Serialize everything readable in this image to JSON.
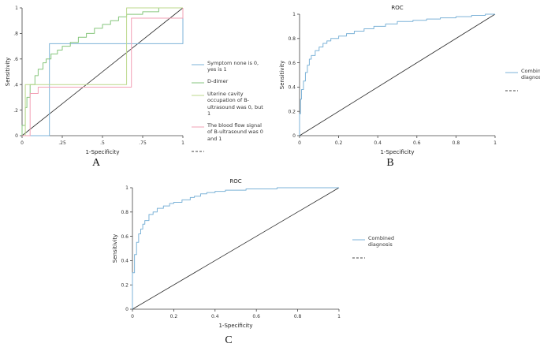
{
  "figure": {
    "background": "#ffffff",
    "panels": [
      {
        "letter": "A"
      },
      {
        "letter": "B"
      },
      {
        "letter": "C"
      }
    ]
  },
  "chart_data": [
    {
      "id": "A",
      "type": "line",
      "title": "",
      "xlabel": "1-Specificity",
      "ylabel": "Sensitivity",
      "xlim": [
        0,
        1
      ],
      "ylim": [
        0,
        1
      ],
      "grid": false,
      "legend_position": "right",
      "xticks": {
        "values": [
          0,
          0.25,
          0.5,
          0.75,
          1
        ],
        "labels": [
          "0",
          ".25",
          ".5",
          ".75",
          "1"
        ]
      },
      "yticks": {
        "values": [
          0,
          0.2,
          0.4,
          0.6,
          0.8,
          1
        ],
        "labels": [
          "0",
          ".2",
          ".4",
          ".6",
          ".8",
          "1"
        ]
      },
      "reference": {
        "points": [
          [
            0,
            0
          ],
          [
            1,
            1
          ]
        ],
        "color": "#2b2b2b",
        "dash": ""
      },
      "series": [
        {
          "name": "Symptom none is 0, yes is 1",
          "color": "#7db3d8",
          "dash": "",
          "points": [
            [
              0,
              0
            ],
            [
              0.17,
              0
            ],
            [
              0.17,
              0.72
            ],
            [
              1,
              0.72
            ],
            [
              1,
              1
            ]
          ]
        },
        {
          "name": "D-dimer",
          "color": "#86c67c",
          "dash": "",
          "points": [
            [
              0,
              0
            ],
            [
              0,
              0.08
            ],
            [
              0.02,
              0.08
            ],
            [
              0.02,
              0.22
            ],
            [
              0.03,
              0.22
            ],
            [
              0.03,
              0.3
            ],
            [
              0.05,
              0.3
            ],
            [
              0.05,
              0.4
            ],
            [
              0.08,
              0.4
            ],
            [
              0.08,
              0.47
            ],
            [
              0.1,
              0.47
            ],
            [
              0.1,
              0.52
            ],
            [
              0.13,
              0.52
            ],
            [
              0.13,
              0.57
            ],
            [
              0.15,
              0.57
            ],
            [
              0.15,
              0.6
            ],
            [
              0.18,
              0.6
            ],
            [
              0.18,
              0.64
            ],
            [
              0.22,
              0.64
            ],
            [
              0.22,
              0.67
            ],
            [
              0.25,
              0.67
            ],
            [
              0.25,
              0.7
            ],
            [
              0.3,
              0.7
            ],
            [
              0.3,
              0.73
            ],
            [
              0.35,
              0.73
            ],
            [
              0.35,
              0.77
            ],
            [
              0.4,
              0.77
            ],
            [
              0.4,
              0.8
            ],
            [
              0.45,
              0.8
            ],
            [
              0.45,
              0.84
            ],
            [
              0.5,
              0.84
            ],
            [
              0.5,
              0.87
            ],
            [
              0.55,
              0.87
            ],
            [
              0.55,
              0.9
            ],
            [
              0.6,
              0.9
            ],
            [
              0.6,
              0.93
            ],
            [
              0.65,
              0.93
            ],
            [
              0.65,
              0.95
            ],
            [
              0.75,
              0.95
            ],
            [
              0.75,
              0.97
            ],
            [
              0.85,
              0.97
            ],
            [
              0.85,
              1
            ],
            [
              1,
              1
            ]
          ]
        },
        {
          "name": "Uterine cavity occupation of B-ultrasound was 0, but 1",
          "color": "#bcd98c",
          "dash": "",
          "points": [
            [
              0,
              0
            ],
            [
              0.02,
              0
            ],
            [
              0.02,
              0.4
            ],
            [
              0.65,
              0.4
            ],
            [
              0.65,
              1
            ],
            [
              1,
              1
            ]
          ]
        },
        {
          "name": "The blood flow signal of B-ultrasound was 0 and 1",
          "color": "#f2a0b5",
          "dash": "",
          "points": [
            [
              0,
              0
            ],
            [
              0.05,
              0
            ],
            [
              0.05,
              0.33
            ],
            [
              0.1,
              0.33
            ],
            [
              0.1,
              0.38
            ],
            [
              0.68,
              0.38
            ],
            [
              0.68,
              0.92
            ],
            [
              1,
              0.92
            ],
            [
              1,
              1
            ]
          ]
        }
      ],
      "legend": [
        {
          "label": "Symptom none is 0, yes is 1",
          "color": "#7db3d8",
          "dash": ""
        },
        {
          "label": "D-dimer",
          "color": "#86c67c",
          "dash": ""
        },
        {
          "label": "Uterine cavity occupation of B-ultrasound was 0, but 1",
          "color": "#bcd98c",
          "dash": ""
        },
        {
          "label": "The blood flow signal of B-ultrasound was 0 and 1",
          "color": "#f2a0b5",
          "dash": ""
        },
        {
          "label": "",
          "color": "#444444",
          "dash": "3,2"
        }
      ]
    },
    {
      "id": "B",
      "type": "line",
      "title": "ROC",
      "xlabel": "1-Specificity",
      "ylabel": "Sensitivity",
      "xlim": [
        0,
        1
      ],
      "ylim": [
        0,
        1
      ],
      "grid": false,
      "legend_position": "right",
      "xticks": {
        "values": [
          0,
          0.2,
          0.4,
          0.6,
          0.8,
          1
        ],
        "labels": [
          "0",
          "0.2",
          "0.4",
          "0.6",
          "0.8",
          "1"
        ]
      },
      "yticks": {
        "values": [
          0,
          0.2,
          0.4,
          0.6,
          0.8,
          1
        ],
        "labels": [
          "0",
          "0.2",
          "0.4",
          "0.6",
          "0.8",
          "1"
        ]
      },
      "reference": {
        "points": [
          [
            0,
            0
          ],
          [
            1,
            1
          ]
        ],
        "color": "#2b2b2b",
        "dash": ""
      },
      "series": [
        {
          "name": "Combined diagnosis",
          "color": "#7db3d8",
          "dash": "",
          "points": [
            [
              0,
              0
            ],
            [
              0,
              0.18
            ],
            [
              0.005,
              0.18
            ],
            [
              0.005,
              0.3
            ],
            [
              0.01,
              0.3
            ],
            [
              0.01,
              0.38
            ],
            [
              0.02,
              0.38
            ],
            [
              0.02,
              0.45
            ],
            [
              0.03,
              0.45
            ],
            [
              0.03,
              0.52
            ],
            [
              0.04,
              0.52
            ],
            [
              0.04,
              0.58
            ],
            [
              0.05,
              0.58
            ],
            [
              0.05,
              0.63
            ],
            [
              0.06,
              0.63
            ],
            [
              0.06,
              0.66
            ],
            [
              0.08,
              0.66
            ],
            [
              0.08,
              0.7
            ],
            [
              0.1,
              0.7
            ],
            [
              0.1,
              0.73
            ],
            [
              0.12,
              0.73
            ],
            [
              0.12,
              0.76
            ],
            [
              0.14,
              0.76
            ],
            [
              0.14,
              0.78
            ],
            [
              0.16,
              0.78
            ],
            [
              0.16,
              0.8
            ],
            [
              0.2,
              0.8
            ],
            [
              0.2,
              0.82
            ],
            [
              0.24,
              0.82
            ],
            [
              0.24,
              0.84
            ],
            [
              0.28,
              0.84
            ],
            [
              0.28,
              0.86
            ],
            [
              0.33,
              0.86
            ],
            [
              0.33,
              0.88
            ],
            [
              0.38,
              0.88
            ],
            [
              0.38,
              0.9
            ],
            [
              0.44,
              0.9
            ],
            [
              0.44,
              0.92
            ],
            [
              0.5,
              0.92
            ],
            [
              0.5,
              0.94
            ],
            [
              0.58,
              0.94
            ],
            [
              0.58,
              0.95
            ],
            [
              0.65,
              0.95
            ],
            [
              0.65,
              0.96
            ],
            [
              0.72,
              0.96
            ],
            [
              0.72,
              0.97
            ],
            [
              0.8,
              0.97
            ],
            [
              0.8,
              0.98
            ],
            [
              0.88,
              0.98
            ],
            [
              0.88,
              0.99
            ],
            [
              0.95,
              0.99
            ],
            [
              0.95,
              1
            ],
            [
              1,
              1
            ]
          ]
        }
      ],
      "legend": [
        {
          "label": "Combined diagnosis",
          "color": "#7db3d8",
          "dash": ""
        },
        {
          "label": "",
          "color": "#444444",
          "dash": "3,2"
        }
      ]
    },
    {
      "id": "C",
      "type": "line",
      "title": "ROC",
      "xlabel": "1-Specificity",
      "ylabel": "Sensitivity",
      "xlim": [
        0,
        1
      ],
      "ylim": [
        0,
        1
      ],
      "grid": false,
      "legend_position": "right",
      "xticks": {
        "values": [
          0,
          0.2,
          0.4,
          0.6,
          0.8,
          1
        ],
        "labels": [
          "0",
          "0.2",
          "0.4",
          "0.6",
          "0.8",
          "1"
        ]
      },
      "yticks": {
        "values": [
          0,
          0.2,
          0.4,
          0.6,
          0.8,
          1
        ],
        "labels": [
          "0",
          "0.2",
          "0.4",
          "0.6",
          "0.8",
          "1"
        ]
      },
      "reference": {
        "points": [
          [
            0,
            0
          ],
          [
            1,
            1
          ]
        ],
        "color": "#2b2b2b",
        "dash": ""
      },
      "series": [
        {
          "name": "Combined diagnosis",
          "color": "#7db3d8",
          "dash": "",
          "points": [
            [
              0,
              0
            ],
            [
              0,
              0.3
            ],
            [
              0.01,
              0.3
            ],
            [
              0.01,
              0.45
            ],
            [
              0.02,
              0.45
            ],
            [
              0.02,
              0.55
            ],
            [
              0.03,
              0.55
            ],
            [
              0.03,
              0.62
            ],
            [
              0.04,
              0.62
            ],
            [
              0.04,
              0.66
            ],
            [
              0.05,
              0.66
            ],
            [
              0.05,
              0.7
            ],
            [
              0.06,
              0.7
            ],
            [
              0.06,
              0.73
            ],
            [
              0.08,
              0.73
            ],
            [
              0.08,
              0.78
            ],
            [
              0.1,
              0.78
            ],
            [
              0.1,
              0.8
            ],
            [
              0.12,
              0.8
            ],
            [
              0.12,
              0.83
            ],
            [
              0.15,
              0.83
            ],
            [
              0.15,
              0.85
            ],
            [
              0.18,
              0.85
            ],
            [
              0.18,
              0.87
            ],
            [
              0.2,
              0.87
            ],
            [
              0.2,
              0.88
            ],
            [
              0.24,
              0.88
            ],
            [
              0.24,
              0.9
            ],
            [
              0.28,
              0.9
            ],
            [
              0.28,
              0.92
            ],
            [
              0.3,
              0.92
            ],
            [
              0.3,
              0.93
            ],
            [
              0.33,
              0.93
            ],
            [
              0.33,
              0.95
            ],
            [
              0.36,
              0.95
            ],
            [
              0.36,
              0.96
            ],
            [
              0.4,
              0.96
            ],
            [
              0.4,
              0.97
            ],
            [
              0.45,
              0.97
            ],
            [
              0.45,
              0.98
            ],
            [
              0.55,
              0.98
            ],
            [
              0.55,
              0.99
            ],
            [
              0.7,
              0.99
            ],
            [
              0.7,
              1
            ],
            [
              1,
              1
            ]
          ]
        }
      ],
      "legend": [
        {
          "label": "Combined diagnosis",
          "color": "#7db3d8",
          "dash": ""
        },
        {
          "label": "",
          "color": "#444444",
          "dash": "3,2"
        }
      ]
    }
  ]
}
